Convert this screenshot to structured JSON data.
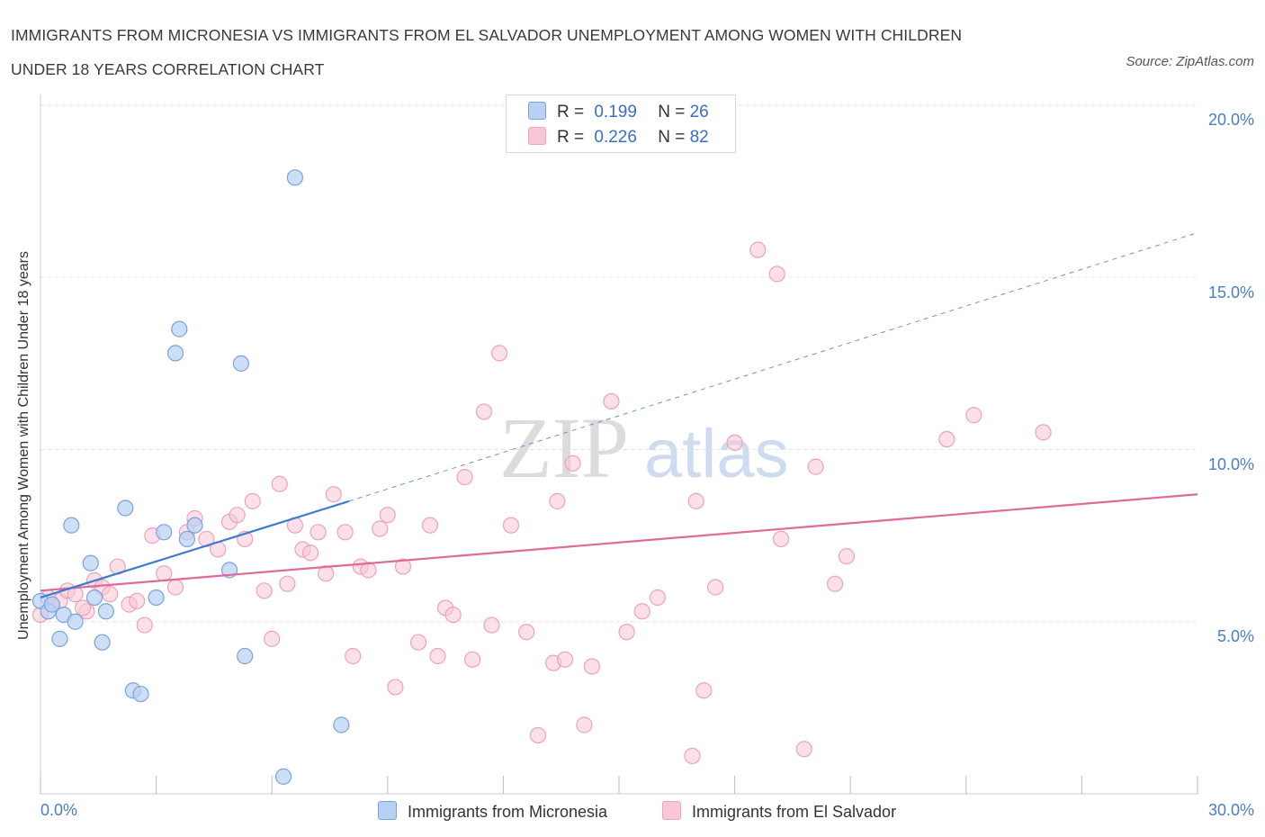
{
  "header": {
    "title_line1": "IMMIGRANTS FROM MICRONESIA VS IMMIGRANTS FROM EL SALVADOR UNEMPLOYMENT AMONG WOMEN WITH CHILDREN",
    "title_line2": "UNDER 18 YEARS CORRELATION CHART",
    "source": "Source: ZipAtlas.com"
  },
  "watermark": {
    "zip": "ZIP",
    "atlas": "atlas"
  },
  "legend": {
    "r_label": "R =",
    "n_label": "N =",
    "series1": {
      "r": "0.199",
      "n": "26"
    },
    "series2": {
      "r": "0.226",
      "n": "82"
    }
  },
  "colors": {
    "micronesia_fill": "#b8d0f4",
    "micronesia_stroke": "#7aa3dc",
    "micronesia_line": "#3e7bd0",
    "elsalvador_fill": "#f8c6d6",
    "elsalvador_stroke": "#eea2ba",
    "elsalvador_line": "#e0689a",
    "tick_text": "#4a7fc4"
  },
  "chart_data": {
    "type": "scatter",
    "title": "IMMIGRANTS FROM MICRONESIA VS IMMIGRANTS FROM EL SALVADOR UNEMPLOYMENT AMONG WOMEN WITH CHILDREN UNDER 18 YEARS CORRELATION CHART",
    "xlabel": "",
    "ylabel": "Unemployment Among Women with Children Under 18 years",
    "xlim": [
      0,
      30
    ],
    "ylim": [
      0,
      20
    ],
    "x_tick_labels": [
      "0.0%",
      "30.0%"
    ],
    "y_tick_labels": [
      "5.0%",
      "10.0%",
      "15.0%",
      "20.0%"
    ],
    "y_ticks": [
      5,
      10,
      15,
      20
    ],
    "grid": true,
    "legend_position": "bottom",
    "series": [
      {
        "name": "Immigrants from Micronesia",
        "points": [
          [
            0.0,
            5.6
          ],
          [
            0.2,
            5.3
          ],
          [
            0.5,
            4.5
          ],
          [
            0.6,
            5.2
          ],
          [
            0.8,
            7.8
          ],
          [
            0.9,
            5.0
          ],
          [
            1.3,
            6.7
          ],
          [
            1.4,
            5.7
          ],
          [
            1.6,
            4.4
          ],
          [
            1.7,
            5.3
          ],
          [
            2.2,
            8.3
          ],
          [
            2.4,
            3.0
          ],
          [
            2.6,
            2.9
          ],
          [
            3.0,
            5.7
          ],
          [
            3.2,
            7.6
          ],
          [
            3.5,
            12.8
          ],
          [
            3.6,
            13.5
          ],
          [
            3.8,
            7.4
          ],
          [
            4.0,
            7.8
          ],
          [
            4.9,
            6.5
          ],
          [
            5.2,
            12.5
          ],
          [
            5.3,
            4.0
          ],
          [
            6.3,
            0.5
          ],
          [
            6.6,
            17.9
          ],
          [
            7.8,
            2.0
          ],
          [
            0.3,
            5.5
          ]
        ],
        "trend": {
          "x": [
            0.0,
            8.0
          ],
          "y": [
            5.7,
            8.5
          ]
        },
        "trend_dashed_extension": {
          "x": [
            8.0,
            30.0
          ],
          "y": [
            8.5,
            16.3
          ]
        }
      },
      {
        "name": "Immigrants from El Salvador",
        "points": [
          [
            0.0,
            5.2
          ],
          [
            0.3,
            5.5
          ],
          [
            0.5,
            5.6
          ],
          [
            0.7,
            5.9
          ],
          [
            0.9,
            5.8
          ],
          [
            1.2,
            5.3
          ],
          [
            1.4,
            6.2
          ],
          [
            1.6,
            6.0
          ],
          [
            1.8,
            5.8
          ],
          [
            2.0,
            6.6
          ],
          [
            2.3,
            5.5
          ],
          [
            2.5,
            5.6
          ],
          [
            2.7,
            4.9
          ],
          [
            2.9,
            7.5
          ],
          [
            3.2,
            6.4
          ],
          [
            3.5,
            6.0
          ],
          [
            3.8,
            7.6
          ],
          [
            4.0,
            8.0
          ],
          [
            4.3,
            7.4
          ],
          [
            4.6,
            7.1
          ],
          [
            4.9,
            7.9
          ],
          [
            5.1,
            8.1
          ],
          [
            5.3,
            7.4
          ],
          [
            5.5,
            8.5
          ],
          [
            5.8,
            5.9
          ],
          [
            6.0,
            4.5
          ],
          [
            6.2,
            9.0
          ],
          [
            6.4,
            6.1
          ],
          [
            6.6,
            7.8
          ],
          [
            6.8,
            7.1
          ],
          [
            7.0,
            7.0
          ],
          [
            7.2,
            7.6
          ],
          [
            7.4,
            6.4
          ],
          [
            7.6,
            8.7
          ],
          [
            7.9,
            7.6
          ],
          [
            8.1,
            4.0
          ],
          [
            8.3,
            6.6
          ],
          [
            8.5,
            6.5
          ],
          [
            8.8,
            7.7
          ],
          [
            9.0,
            8.1
          ],
          [
            9.2,
            3.1
          ],
          [
            9.4,
            6.6
          ],
          [
            9.8,
            4.4
          ],
          [
            10.1,
            7.8
          ],
          [
            10.3,
            4.0
          ],
          [
            10.5,
            5.4
          ],
          [
            10.7,
            5.2
          ],
          [
            11.0,
            9.2
          ],
          [
            11.2,
            3.9
          ],
          [
            11.5,
            11.1
          ],
          [
            11.7,
            4.9
          ],
          [
            11.9,
            12.8
          ],
          [
            12.2,
            7.8
          ],
          [
            12.6,
            4.7
          ],
          [
            12.9,
            1.7
          ],
          [
            13.3,
            3.8
          ],
          [
            13.6,
            3.9
          ],
          [
            13.4,
            8.5
          ],
          [
            13.8,
            9.6
          ],
          [
            14.1,
            2.0
          ],
          [
            14.3,
            3.7
          ],
          [
            14.8,
            11.4
          ],
          [
            15.2,
            4.7
          ],
          [
            15.6,
            5.3
          ],
          [
            16.0,
            5.7
          ],
          [
            16.9,
            1.1
          ],
          [
            17.0,
            8.5
          ],
          [
            17.2,
            3.0
          ],
          [
            17.5,
            6.0
          ],
          [
            18.0,
            10.2
          ],
          [
            18.6,
            15.8
          ],
          [
            19.1,
            15.1
          ],
          [
            19.2,
            7.4
          ],
          [
            19.8,
            1.3
          ],
          [
            20.1,
            9.5
          ],
          [
            20.6,
            6.1
          ],
          [
            20.9,
            6.9
          ],
          [
            23.5,
            10.3
          ],
          [
            24.2,
            11.0
          ],
          [
            26.0,
            10.5
          ],
          [
            0.2,
            5.7
          ],
          [
            1.1,
            5.4
          ]
        ],
        "trend": {
          "x": [
            0.0,
            30.0
          ],
          "y": [
            5.9,
            8.7
          ]
        }
      }
    ]
  }
}
